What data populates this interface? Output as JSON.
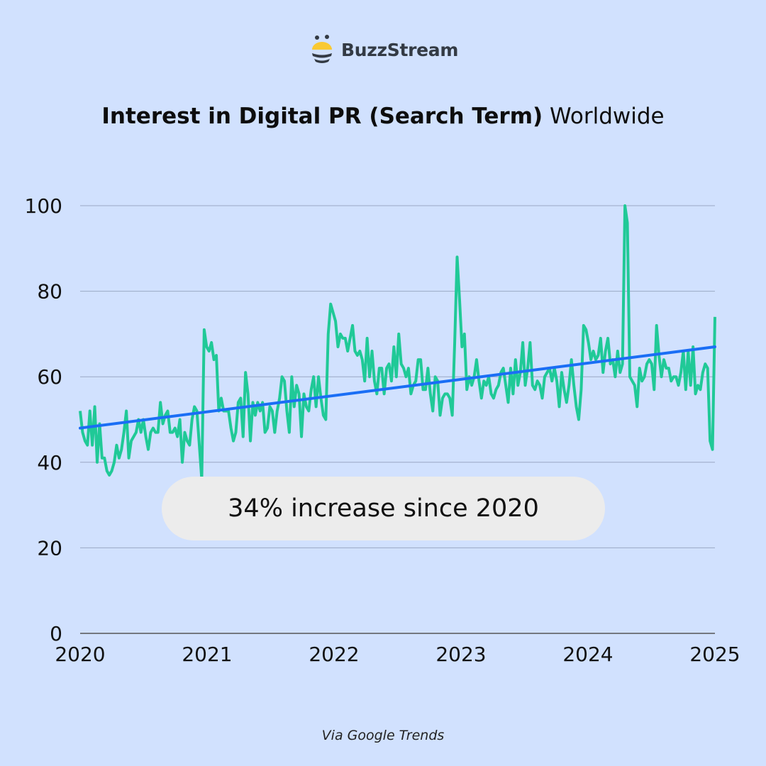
{
  "brand": {
    "name": "BuzzStream"
  },
  "title": {
    "bold": "Interest in Digital PR (Search Term)",
    "normal": "Worldwide"
  },
  "annotation": "34% increase since 2020",
  "footer": "Via Google Trends",
  "colors": {
    "background": "#d1e1fe",
    "series": "#20c997",
    "trend": "#1a6ef5",
    "annotation_bg": "#ececec",
    "logo_yellow": "#f9c932",
    "logo_dark": "#333a44"
  },
  "chart_data": {
    "type": "line",
    "title": "Interest in Digital PR (Search Term) Worldwide",
    "frequency": "weekly",
    "xlim": [
      2020,
      2025
    ],
    "ylim": [
      0,
      100
    ],
    "x_ticks": [
      "2020",
      "2021",
      "2022",
      "2023",
      "2024",
      "2025"
    ],
    "y_ticks": [
      "0",
      "20",
      "40",
      "60",
      "80",
      "100"
    ],
    "grid": true,
    "series": [
      {
        "values": [
          52,
          47,
          45,
          44,
          52,
          44,
          53,
          40,
          49,
          41,
          41,
          38,
          37,
          38,
          40,
          44,
          41,
          43,
          47,
          52,
          41,
          45,
          46,
          47,
          50,
          47,
          50,
          46,
          43,
          47,
          48,
          47,
          47,
          54,
          49,
          51,
          52,
          47,
          47,
          48,
          46,
          50,
          40,
          47,
          45,
          44,
          50,
          53,
          52,
          44,
          36,
          71,
          67,
          66,
          68,
          64,
          65,
          52,
          55,
          52,
          52,
          52,
          48,
          45,
          47,
          54,
          55,
          46,
          61,
          56,
          45,
          54,
          51,
          54,
          52,
          54,
          47,
          48,
          53,
          52,
          47,
          52,
          55,
          60,
          59,
          52,
          47,
          60,
          53,
          58,
          56,
          46,
          56,
          53,
          52,
          57,
          60,
          53,
          60,
          55,
          51,
          50,
          70,
          77,
          75,
          73,
          67,
          70,
          69,
          69,
          66,
          69,
          72,
          66,
          65,
          66,
          64,
          59,
          69,
          60,
          66,
          59,
          56,
          62,
          62,
          56,
          62,
          63,
          59,
          67,
          60,
          70,
          63,
          62,
          60,
          62,
          56,
          58,
          59,
          64,
          64,
          57,
          57,
          62,
          56,
          52,
          60,
          59,
          51,
          55,
          56,
          56,
          55,
          51,
          68,
          88,
          78,
          67,
          70,
          57,
          60,
          58,
          60,
          64,
          59,
          55,
          59,
          58,
          60,
          56,
          55,
          57,
          58,
          61,
          62,
          58,
          54,
          62,
          56,
          64,
          58,
          61,
          68,
          58,
          62,
          68,
          58,
          57,
          59,
          58,
          55,
          60,
          61,
          62,
          59,
          62,
          59,
          53,
          61,
          57,
          54,
          58,
          64,
          58,
          53,
          50,
          57,
          72,
          71,
          68,
          64,
          66,
          64,
          65,
          69,
          61,
          66,
          69,
          63,
          64,
          60,
          66,
          61,
          63,
          100,
          96,
          60,
          59,
          58,
          53,
          62,
          59,
          60,
          63,
          64,
          63,
          57,
          72,
          65,
          60,
          64,
          62,
          62,
          59,
          60,
          60,
          58,
          61,
          66,
          57,
          66,
          58,
          67,
          56,
          58,
          57,
          61,
          63,
          62,
          45,
          43,
          74
        ]
      }
    ],
    "trendline": {
      "start": 48,
      "end": 67
    }
  }
}
